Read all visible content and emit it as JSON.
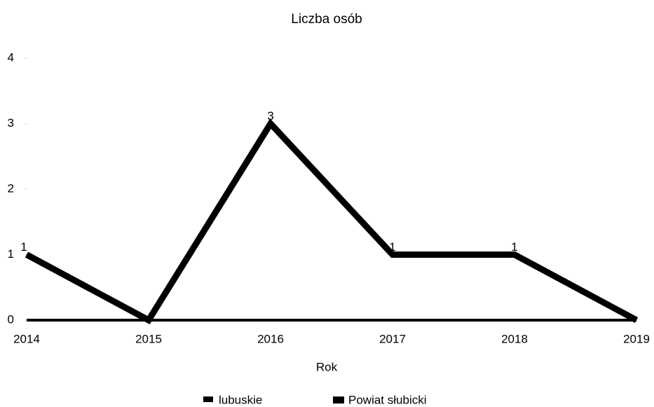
{
  "chart_data": {
    "type": "line",
    "title": "Liczba osób",
    "x_label": "Rok",
    "categories": [
      "2014",
      "2015",
      "2016",
      "2017",
      "2018",
      "2019"
    ],
    "series": [
      {
        "name": "lubuskie",
        "color": "#000000",
        "values": [
          0,
          0,
          0,
          0,
          0,
          0
        ]
      },
      {
        "name": "Powiat słubicki",
        "color": "#000000",
        "values": [
          1,
          0,
          3,
          1,
          1,
          0
        ],
        "value_labels": [
          "1",
          null,
          "3",
          "1",
          "1",
          null
        ]
      }
    ],
    "ylim": [
      0,
      4
    ],
    "yticks": [
      0,
      1,
      2,
      3,
      4
    ],
    "legend": "bottom"
  }
}
